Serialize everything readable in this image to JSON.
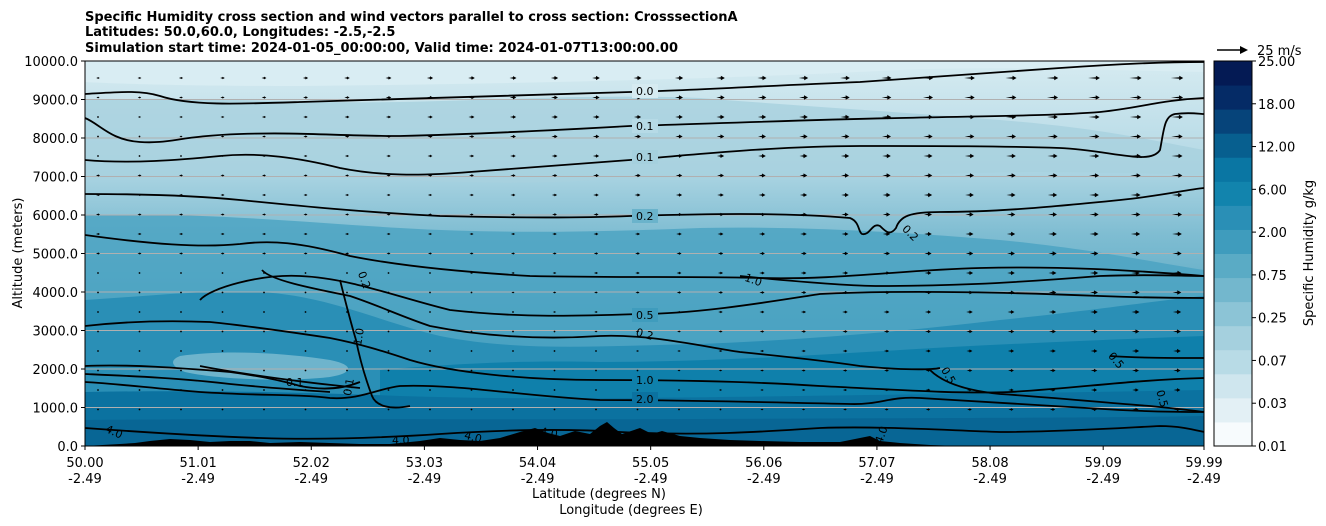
{
  "chart_data": {
    "type": "contour",
    "title_lines": [
      "Specific Humidity cross section and wind vectors parallel to cross section: CrosssectionA",
      "Latitudes: 50.0,60.0, Longitudes: -2.5,-2.5",
      "Simulation start time: 2024-01-05_00:00:00, Valid time: 2024-01-07T13:00:00.00"
    ],
    "ylabel": "Altitude (meters)",
    "xlabel_lat": "Latitude (degrees N)",
    "xlabel_lon": "Longitude (degrees E)",
    "ylim": [
      0,
      10000
    ],
    "y_ticks": [
      "0.0",
      "1000.0",
      "2000.0",
      "3000.0",
      "4000.0",
      "5000.0",
      "6000.0",
      "7000.0",
      "8000.0",
      "9000.0",
      "10000.0"
    ],
    "x_ticks": [
      {
        "lat": "50.00",
        "lon": "-2.49"
      },
      {
        "lat": "51.01",
        "lon": "-2.49"
      },
      {
        "lat": "52.02",
        "lon": "-2.49"
      },
      {
        "lat": "53.03",
        "lon": "-2.49"
      },
      {
        "lat": "54.04",
        "lon": "-2.49"
      },
      {
        "lat": "55.05",
        "lon": "-2.49"
      },
      {
        "lat": "56.06",
        "lon": "-2.49"
      },
      {
        "lat": "57.07",
        "lon": "-2.49"
      },
      {
        "lat": "58.08",
        "lon": "-2.49"
      },
      {
        "lat": "59.09",
        "lon": "-2.49"
      },
      {
        "lat": "59.99",
        "lon": "-2.49"
      }
    ],
    "colorbar_label": "Specific Humidity g/kg",
    "colorbar_ticks": [
      "0.01",
      "0.03",
      "0.07",
      "0.25",
      "0.75",
      "2.00",
      "6.00",
      "12.00",
      "18.00",
      "25.00"
    ],
    "quiver_key": "25 m/s",
    "contour_labels": [
      "0.0",
      "0.1",
      "0.1",
      "0.2",
      "0.2",
      "0.2",
      "0.5",
      "0.2",
      "1.0",
      "2.0",
      "1.0",
      "1.0",
      "0.5",
      "0.5",
      "0.5",
      "4.0",
      "4.0",
      "4.0",
      "4.0",
      "4.0",
      "0.1",
      "0.1"
    ]
  },
  "colors": {
    "cbar": [
      "#f7fbfd",
      "#e3f0f5",
      "#cfe6ee",
      "#b8dbe6",
      "#a5d0de",
      "#8cc4d6",
      "#73b7cd",
      "#5aabc5",
      "#3f9cbd",
      "#2a8fb6",
      "#1284ad",
      "#0a76a3",
      "#075f8f",
      "#06447a",
      "#052b66",
      "#041a54"
    ],
    "terrain": "#000000",
    "contour": "#000000"
  }
}
